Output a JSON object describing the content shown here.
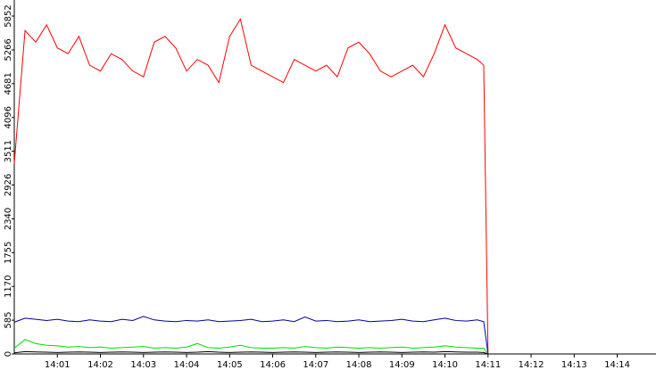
{
  "chart_data": {
    "type": "line",
    "x": [
      0,
      0.25,
      0.5,
      0.75,
      1,
      1.25,
      1.5,
      1.75,
      2,
      2.25,
      2.5,
      2.75,
      3,
      3.25,
      3.5,
      3.75,
      4,
      4.25,
      4.5,
      4.75,
      5,
      5.25,
      5.5,
      5.75,
      6,
      6.25,
      6.5,
      6.75,
      7,
      7.25,
      7.5,
      7.75,
      8,
      8.25,
      8.5,
      8.75,
      9,
      9.25,
      9.5,
      9.75,
      10,
      10.25,
      10.5,
      10.75,
      10.9,
      11
    ],
    "series": [
      {
        "color": "#ff0000",
        "values": [
          3300,
          5600,
          5400,
          5700,
          5300,
          5200,
          5500,
          5000,
          4900,
          5200,
          5100,
          4900,
          4800,
          5400,
          5500,
          5300,
          4900,
          5100,
          5000,
          4700,
          5500,
          5800,
          5000,
          4900,
          4800,
          4700,
          5100,
          5000,
          4900,
          5000,
          4800,
          5300,
          5400,
          5200,
          4900,
          4800,
          4900,
          5000,
          4800,
          5200,
          5700,
          5300,
          5200,
          5100,
          5000,
          0
        ]
      },
      {
        "color": "#0000a0",
        "values": [
          550,
          620,
          600,
          580,
          600,
          570,
          560,
          590,
          570,
          560,
          600,
          580,
          650,
          590,
          570,
          560,
          580,
          570,
          590,
          560,
          570,
          580,
          600,
          560,
          570,
          590,
          560,
          640,
          570,
          580,
          560,
          570,
          590,
          560,
          570,
          580,
          600,
          570,
          560,
          590,
          620,
          580,
          570,
          590,
          560,
          0
        ]
      },
      {
        "color": "#00dd00",
        "values": [
          100,
          250,
          180,
          150,
          140,
          120,
          130,
          110,
          120,
          100,
          110,
          120,
          130,
          100,
          110,
          100,
          120,
          180,
          110,
          100,
          120,
          150,
          110,
          100,
          100,
          110,
          100,
          130,
          110,
          100,
          120,
          110,
          100,
          110,
          100,
          110,
          120,
          100,
          110,
          120,
          140,
          120,
          110,
          100,
          100,
          0
        ]
      },
      {
        "color": "#000000",
        "values": [
          20,
          40,
          35,
          30,
          25,
          30,
          35,
          30,
          25,
          30,
          35,
          30,
          25,
          30,
          35,
          30,
          25,
          30,
          40,
          30,
          25,
          30,
          35,
          30,
          25,
          30,
          35,
          30,
          25,
          30,
          35,
          30,
          25,
          30,
          35,
          30,
          25,
          30,
          35,
          30,
          40,
          35,
          30,
          30,
          25,
          0
        ]
      }
    ],
    "xlim": [
      0,
      14.9
    ],
    "xticks": [
      {
        "value": 1,
        "label": "14:01"
      },
      {
        "value": 2,
        "label": "14:02"
      },
      {
        "value": 3,
        "label": "14:03"
      },
      {
        "value": 4,
        "label": "14:04"
      },
      {
        "value": 5,
        "label": "14:05"
      },
      {
        "value": 6,
        "label": "14:06"
      },
      {
        "value": 7,
        "label": "14:07"
      },
      {
        "value": 8,
        "label": "14:08"
      },
      {
        "value": 9,
        "label": "14:09"
      },
      {
        "value": 10,
        "label": "14:10"
      },
      {
        "value": 11,
        "label": "14:11"
      },
      {
        "value": 12,
        "label": "14:12"
      },
      {
        "value": 13,
        "label": "14:13"
      },
      {
        "value": 14,
        "label": "14:14"
      }
    ],
    "ylim": [
      0,
      6130
    ],
    "yticks": [
      0,
      585,
      1170,
      1755,
      2340,
      2926,
      3511,
      4096,
      4681,
      5266,
      5852
    ]
  }
}
